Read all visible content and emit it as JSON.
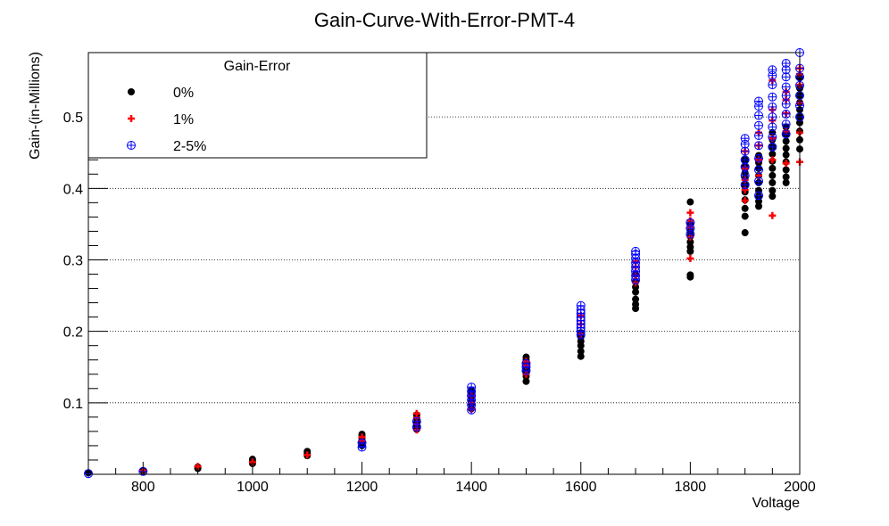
{
  "chart_data": {
    "type": "scatter",
    "title": "Gain-Curve-With-Error-PMT-4",
    "xlabel": "Voltage",
    "ylabel": "Gain-(in-Millions)",
    "xlim": [
      700,
      2000
    ],
    "ylim": [
      0,
      0.59
    ],
    "xticks": [
      800,
      1000,
      1200,
      1400,
      1600,
      1800,
      2000
    ],
    "yticks": [
      0.1,
      0.2,
      0.3,
      0.4,
      0.5
    ],
    "grid": "horizontal-dotted",
    "legend": {
      "title": "Gain-Error",
      "placement": "top-left"
    },
    "series": [
      {
        "name": "0%",
        "marker": "filled-circle",
        "color": "#000000",
        "points": [
          [
            700,
            0.002
          ],
          [
            800,
            0.005
          ],
          [
            900,
            0.008
          ],
          [
            900,
            0.01
          ],
          [
            1000,
            0.015
          ],
          [
            1000,
            0.018
          ],
          [
            1000,
            0.021
          ],
          [
            1100,
            0.026
          ],
          [
            1100,
            0.029
          ],
          [
            1100,
            0.032
          ],
          [
            1200,
            0.04
          ],
          [
            1200,
            0.045
          ],
          [
            1200,
            0.05
          ],
          [
            1200,
            0.053
          ],
          [
            1200,
            0.056
          ],
          [
            1300,
            0.063
          ],
          [
            1300,
            0.068
          ],
          [
            1300,
            0.072
          ],
          [
            1300,
            0.078
          ],
          [
            1300,
            0.083
          ],
          [
            1400,
            0.092
          ],
          [
            1400,
            0.098
          ],
          [
            1400,
            0.102
          ],
          [
            1400,
            0.108
          ],
          [
            1400,
            0.114
          ],
          [
            1400,
            0.118
          ],
          [
            1500,
            0.13
          ],
          [
            1500,
            0.137
          ],
          [
            1500,
            0.143
          ],
          [
            1500,
            0.15
          ],
          [
            1500,
            0.156
          ],
          [
            1500,
            0.16
          ],
          [
            1500,
            0.164
          ],
          [
            1600,
            0.165
          ],
          [
            1600,
            0.172
          ],
          [
            1600,
            0.18
          ],
          [
            1600,
            0.186
          ],
          [
            1600,
            0.192
          ],
          [
            1600,
            0.198
          ],
          [
            1700,
            0.232
          ],
          [
            1700,
            0.238
          ],
          [
            1700,
            0.245
          ],
          [
            1700,
            0.255
          ],
          [
            1700,
            0.262
          ],
          [
            1700,
            0.27
          ],
          [
            1700,
            0.28
          ],
          [
            1800,
            0.276
          ],
          [
            1800,
            0.279
          ],
          [
            1800,
            0.312
          ],
          [
            1800,
            0.318
          ],
          [
            1800,
            0.325
          ],
          [
            1800,
            0.333
          ],
          [
            1800,
            0.34
          ],
          [
            1800,
            0.35
          ],
          [
            1800,
            0.381
          ],
          [
            1900,
            0.338
          ],
          [
            1900,
            0.361
          ],
          [
            1900,
            0.372
          ],
          [
            1900,
            0.384
          ],
          [
            1900,
            0.395
          ],
          [
            1900,
            0.405
          ],
          [
            1900,
            0.414
          ],
          [
            1900,
            0.422
          ],
          [
            1900,
            0.43
          ],
          [
            1900,
            0.44
          ],
          [
            1925,
            0.375
          ],
          [
            1925,
            0.382
          ],
          [
            1925,
            0.389
          ],
          [
            1925,
            0.397
          ],
          [
            1925,
            0.408
          ],
          [
            1925,
            0.418
          ],
          [
            1925,
            0.428
          ],
          [
            1925,
            0.436
          ],
          [
            1925,
            0.446
          ],
          [
            1950,
            0.389
          ],
          [
            1950,
            0.397
          ],
          [
            1950,
            0.408
          ],
          [
            1950,
            0.418
          ],
          [
            1950,
            0.428
          ],
          [
            1950,
            0.438
          ],
          [
            1950,
            0.448
          ],
          [
            1950,
            0.458
          ],
          [
            1950,
            0.468
          ],
          [
            1950,
            0.478
          ],
          [
            1975,
            0.408
          ],
          [
            1975,
            0.416
          ],
          [
            1975,
            0.426
          ],
          [
            1975,
            0.437
          ],
          [
            1975,
            0.447
          ],
          [
            1975,
            0.456
          ],
          [
            1975,
            0.466
          ],
          [
            1975,
            0.476
          ],
          [
            1975,
            0.486
          ],
          [
            2000,
            0.455
          ],
          [
            2000,
            0.468
          ],
          [
            2000,
            0.48
          ],
          [
            2000,
            0.492
          ],
          [
            2000,
            0.5
          ],
          [
            2000,
            0.51
          ],
          [
            2000,
            0.52
          ],
          [
            2000,
            0.53
          ],
          [
            2000,
            0.54
          ],
          [
            2000,
            0.555
          ]
        ]
      },
      {
        "name": "1%",
        "marker": "plus",
        "color": "#ff0000",
        "points": [
          [
            800,
            0.005
          ],
          [
            900,
            0.011
          ],
          [
            1000,
            0.017
          ],
          [
            1100,
            0.027
          ],
          [
            1200,
            0.047
          ],
          [
            1200,
            0.052
          ],
          [
            1300,
            0.062
          ],
          [
            1300,
            0.07
          ],
          [
            1300,
            0.079
          ],
          [
            1300,
            0.085
          ],
          [
            1400,
            0.091
          ],
          [
            1400,
            0.1
          ],
          [
            1400,
            0.11
          ],
          [
            1500,
            0.14
          ],
          [
            1500,
            0.152
          ],
          [
            1500,
            0.158
          ],
          [
            1600,
            0.196
          ],
          [
            1600,
            0.21
          ],
          [
            1600,
            0.222
          ],
          [
            1700,
            0.268
          ],
          [
            1700,
            0.278
          ],
          [
            1700,
            0.29
          ],
          [
            1700,
            0.298
          ],
          [
            1800,
            0.302
          ],
          [
            1800,
            0.332
          ],
          [
            1800,
            0.345
          ],
          [
            1800,
            0.355
          ],
          [
            1800,
            0.366
          ],
          [
            1900,
            0.383
          ],
          [
            1900,
            0.398
          ],
          [
            1900,
            0.412
          ],
          [
            1900,
            0.428
          ],
          [
            1900,
            0.452
          ],
          [
            1925,
            0.418
          ],
          [
            1925,
            0.44
          ],
          [
            1925,
            0.46
          ],
          [
            1925,
            0.478
          ],
          [
            1950,
            0.362
          ],
          [
            1950,
            0.44
          ],
          [
            1950,
            0.47
          ],
          [
            1950,
            0.495
          ],
          [
            1950,
            0.51
          ],
          [
            1950,
            0.551
          ],
          [
            1975,
            0.435
          ],
          [
            1975,
            0.48
          ],
          [
            1975,
            0.505
          ],
          [
            1975,
            0.524
          ],
          [
            1975,
            0.535
          ],
          [
            2000,
            0.437
          ],
          [
            2000,
            0.478
          ],
          [
            2000,
            0.52
          ],
          [
            2000,
            0.545
          ],
          [
            2000,
            0.56
          ],
          [
            2000,
            0.568
          ]
        ]
      },
      {
        "name": "2-5%",
        "marker": "open-circle-plus",
        "color": "#0000ff",
        "points": [
          [
            700,
            0.001
          ],
          [
            800,
            0.004
          ],
          [
            1200,
            0.038
          ],
          [
            1200,
            0.044
          ],
          [
            1300,
            0.066
          ],
          [
            1300,
            0.074
          ],
          [
            1400,
            0.09
          ],
          [
            1400,
            0.097
          ],
          [
            1400,
            0.104
          ],
          [
            1400,
            0.11
          ],
          [
            1400,
            0.116
          ],
          [
            1400,
            0.122
          ],
          [
            1500,
            0.145
          ],
          [
            1500,
            0.15
          ],
          [
            1500,
            0.155
          ],
          [
            1600,
            0.195
          ],
          [
            1600,
            0.2
          ],
          [
            1600,
            0.205
          ],
          [
            1600,
            0.21
          ],
          [
            1600,
            0.215
          ],
          [
            1600,
            0.22
          ],
          [
            1600,
            0.225
          ],
          [
            1600,
            0.23
          ],
          [
            1600,
            0.236
          ],
          [
            1700,
            0.272
          ],
          [
            1700,
            0.278
          ],
          [
            1700,
            0.284
          ],
          [
            1700,
            0.29
          ],
          [
            1700,
            0.296
          ],
          [
            1700,
            0.302
          ],
          [
            1700,
            0.308
          ],
          [
            1700,
            0.312
          ],
          [
            1800,
            0.336
          ],
          [
            1800,
            0.344
          ],
          [
            1800,
            0.352
          ],
          [
            1900,
            0.405
          ],
          [
            1900,
            0.418
          ],
          [
            1900,
            0.43
          ],
          [
            1900,
            0.44
          ],
          [
            1900,
            0.452
          ],
          [
            1900,
            0.462
          ],
          [
            1900,
            0.47
          ],
          [
            1925,
            0.39
          ],
          [
            1925,
            0.41
          ],
          [
            1925,
            0.426
          ],
          [
            1925,
            0.442
          ],
          [
            1925,
            0.46
          ],
          [
            1925,
            0.474
          ],
          [
            1925,
            0.488
          ],
          [
            1925,
            0.502
          ],
          [
            1925,
            0.515
          ],
          [
            1925,
            0.522
          ],
          [
            1950,
            0.458
          ],
          [
            1950,
            0.472
          ],
          [
            1950,
            0.486
          ],
          [
            1950,
            0.5
          ],
          [
            1950,
            0.514
          ],
          [
            1950,
            0.528
          ],
          [
            1950,
            0.545
          ],
          [
            1950,
            0.558
          ],
          [
            1950,
            0.566
          ],
          [
            1975,
            0.476
          ],
          [
            1975,
            0.49
          ],
          [
            1975,
            0.504
          ],
          [
            1975,
            0.518
          ],
          [
            1975,
            0.53
          ],
          [
            1975,
            0.542
          ],
          [
            1975,
            0.556
          ],
          [
            1975,
            0.566
          ],
          [
            1975,
            0.575
          ],
          [
            2000,
            0.5
          ],
          [
            2000,
            0.516
          ],
          [
            2000,
            0.53
          ],
          [
            2000,
            0.544
          ],
          [
            2000,
            0.556
          ],
          [
            2000,
            0.568
          ],
          [
            2000,
            0.59
          ]
        ]
      }
    ]
  }
}
